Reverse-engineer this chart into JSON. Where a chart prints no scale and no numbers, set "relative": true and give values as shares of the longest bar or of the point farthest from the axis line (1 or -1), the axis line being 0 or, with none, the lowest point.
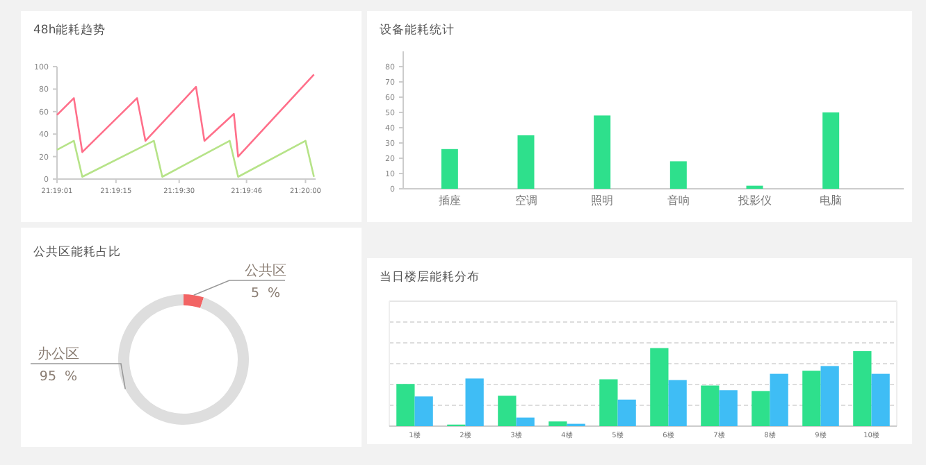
{
  "chart_data": [
    {
      "type": "line",
      "title": "48h能耗趋势",
      "xlim": [
        21.316944,
        21.334
      ],
      "ylim": [
        0,
        100
      ],
      "yticks": [
        0,
        20,
        40,
        60,
        80,
        100
      ],
      "xticks": [
        {
          "value": 21.316944,
          "label": "21:19:01"
        },
        {
          "value": 21.320833,
          "label": "21:19:15"
        },
        {
          "value": 21.325,
          "label": "21:19:30"
        },
        {
          "value": 21.329444,
          "label": "21:19:46"
        },
        {
          "value": 21.333333,
          "label": "21:20:00"
        }
      ],
      "marker": "none",
      "grid": false,
      "series": [
        {
          "color": "#b6e388",
          "x": [
            21.316944,
            21.318056,
            21.318611,
            21.323333,
            21.323889,
            21.328333,
            21.328889,
            21.333333,
            21.333889
          ],
          "values": [
            26,
            34,
            2,
            34,
            2,
            34,
            2,
            34,
            2
          ]
        },
        {
          "color": "#ff6f8a",
          "x": [
            21.316944,
            21.318056,
            21.318611,
            21.322222,
            21.322778,
            21.326111,
            21.326667,
            21.328611,
            21.328889,
            21.333889
          ],
          "values": [
            57,
            72,
            24,
            72,
            34,
            82,
            34,
            58,
            20,
            93
          ]
        }
      ]
    },
    {
      "type": "bar",
      "title": "设备能耗统计",
      "categories": [
        "插座",
        "空调",
        "照明",
        "音响",
        "投影仪",
        "电脑"
      ],
      "values": [
        26,
        35,
        48,
        18,
        2,
        50
      ],
      "color": "#2ee08c",
      "ylim": [
        0,
        90
      ],
      "yticks": [
        0,
        10,
        20,
        30,
        40,
        50,
        60,
        70,
        80
      ],
      "grid": false
    },
    {
      "type": "donut",
      "title": "公共区能耗占比",
      "categories": [
        "公共区",
        "办公区"
      ],
      "values": [
        5,
        95
      ],
      "colors": [
        "#f26464",
        "#dedede"
      ],
      "value_labels": [
        "5  %",
        "95  %"
      ]
    },
    {
      "type": "bar",
      "title": "当日楼层能耗分布",
      "relative": true,
      "grid": "y",
      "categories": [
        "1楼",
        "2楼",
        "3楼",
        "4楼",
        "5楼",
        "6楼",
        "7楼",
        "8楼",
        "9楼",
        "10楼"
      ],
      "series": [
        {
          "color": "#2ee08c",
          "values": [
            0.54,
            0.02,
            0.39,
            0.06,
            0.6,
            1,
            0.52,
            0.45,
            0.71,
            0.96
          ]
        },
        {
          "color": "#3fbdf5",
          "values": [
            0.38,
            0.61,
            0.11,
            0.03,
            0.34,
            0.59,
            0.46,
            0.67,
            0.77,
            0.67
          ]
        }
      ]
    }
  ]
}
